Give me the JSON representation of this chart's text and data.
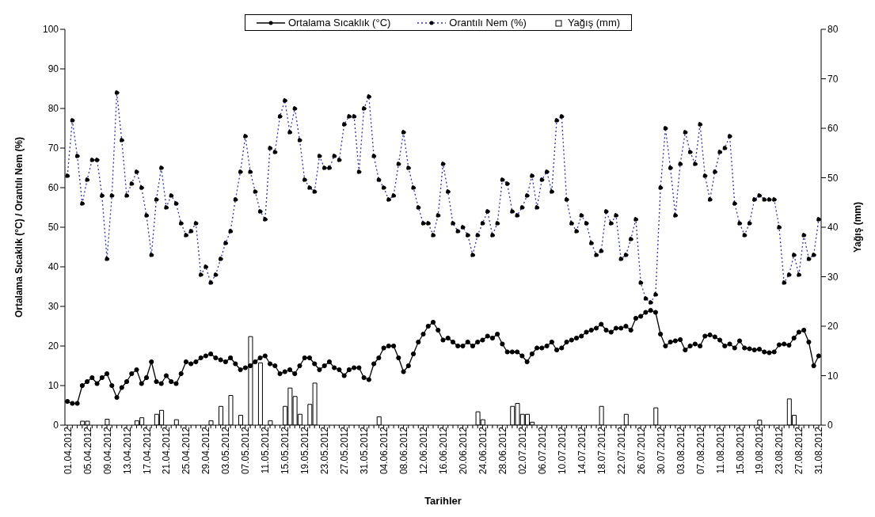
{
  "chart_data": {
    "type": "line",
    "xlabel": "Tarihler",
    "ylabel": "Ortalama Sıcaklık (°C) / Orantılı Nem (%)",
    "y2label": "Yağış (mm)",
    "categories": [
      "01.04.2012",
      null,
      null,
      null,
      "05.04.2012",
      null,
      null,
      null,
      "09.04.2012",
      null,
      null,
      null,
      "13.04.2012",
      null,
      null,
      null,
      "17.04.2012",
      null,
      null,
      null,
      "21.04.2012",
      null,
      null,
      null,
      "25.04.2012",
      null,
      null,
      null,
      "29.04.2012",
      null,
      null,
      null,
      "03.05.2012",
      null,
      null,
      null,
      "07.05.2012",
      null,
      null,
      null,
      "11.05.2012",
      null,
      null,
      null,
      "15.05.2012",
      null,
      null,
      null,
      "19.05.2012",
      null,
      null,
      null,
      "23.05.2012",
      null,
      null,
      null,
      "27.05.2012",
      null,
      null,
      null,
      "31.05.2012",
      null,
      null,
      null,
      "04.06.2012",
      null,
      null,
      null,
      "08.06.2012",
      null,
      null,
      null,
      "12.06.2012",
      null,
      null,
      null,
      "16.06.2012",
      null,
      null,
      null,
      "20.06.2012",
      null,
      null,
      null,
      "24.06.2012",
      null,
      null,
      null,
      "28.06.2012",
      null,
      null,
      null,
      "02.07.2012",
      null,
      null,
      null,
      "06.07.2012",
      null,
      null,
      null,
      "10.07.2012",
      null,
      null,
      null,
      "14.07.2012",
      null,
      null,
      null,
      "18.07.2012",
      null,
      null,
      null,
      "22.07.2012",
      null,
      null,
      null,
      "26.07.2012",
      null,
      null,
      null,
      "30.07.2012",
      null,
      null,
      null,
      "03.08.2012",
      null,
      null,
      null,
      "07.08.2012",
      null,
      null,
      null,
      "11.08.2012",
      null,
      null,
      null,
      "15.08.2012",
      null,
      null,
      null,
      "19.08.2012",
      null,
      null,
      null,
      "23.08.2012",
      null,
      null,
      null,
      "27.08.2012",
      null,
      null,
      null,
      "31.08.2012"
    ],
    "series": [
      {
        "name": "Ortalama Sıcaklık (°C)",
        "color": "#000000",
        "line_style": "solid",
        "values": [
          6,
          5.5,
          5.5,
          10,
          11,
          12,
          10.5,
          12,
          13,
          10,
          7,
          9.5,
          11,
          13,
          14,
          10.5,
          12,
          16,
          11,
          10.5,
          12.5,
          11,
          10.5,
          13,
          16,
          15.5,
          16,
          17,
          17.5,
          18,
          17,
          16.5,
          16,
          17,
          15.5,
          14,
          14.5,
          15,
          16,
          17,
          17.5,
          15.5,
          15,
          13,
          13.5,
          14,
          13,
          15,
          17,
          17,
          15.5,
          14,
          15,
          16,
          14.5,
          14,
          12.5,
          14,
          14.5,
          14.5,
          12,
          11.5,
          15.5,
          17,
          19.5,
          20,
          20,
          17,
          13.5,
          15,
          18,
          21,
          23,
          25,
          26,
          24,
          21.5,
          22,
          21,
          20,
          20,
          21,
          20,
          21,
          21.5,
          22.5,
          22,
          23,
          20.5,
          18.5,
          18.5,
          18.5,
          17.5,
          16,
          18,
          19.5,
          19.5,
          20,
          21,
          19,
          19.5,
          21,
          21.5,
          22,
          22.5,
          23.5,
          24,
          24.5,
          25.5,
          24,
          23.5,
          24.5,
          24.5,
          25,
          24,
          27,
          27.5,
          28.5,
          29,
          28.5,
          23,
          20,
          21,
          21.3,
          21.6,
          19,
          20,
          20.5,
          20,
          22.5,
          22.8,
          22.3,
          21.5,
          20,
          20.5,
          19.5,
          21.3,
          19.5,
          19.3,
          19,
          19.2,
          18.5,
          18.3,
          18.5,
          20.3,
          20.5,
          20.2,
          22,
          23.5,
          24,
          21,
          15,
          17.5
        ]
      },
      {
        "name": "Orantılı Nem (%)",
        "color": "#3333aa",
        "line_style": "dotted",
        "values": [
          63,
          77,
          68,
          56,
          62,
          67,
          67,
          58,
          42,
          58,
          84,
          72,
          58,
          61,
          64,
          60,
          53,
          43,
          57,
          65,
          55,
          58,
          56,
          51,
          48,
          49,
          51,
          38,
          40,
          36,
          38,
          42,
          46,
          49,
          57,
          64,
          73,
          64,
          59,
          54,
          52,
          70,
          69,
          78,
          82,
          74,
          80,
          72,
          62,
          60,
          59,
          68,
          65,
          65,
          68,
          67,
          76,
          78,
          78,
          64,
          80,
          83,
          68,
          62,
          60,
          57,
          58,
          66,
          74,
          65,
          60,
          55,
          51,
          51,
          48,
          53,
          66,
          59,
          51,
          49,
          50,
          48,
          43,
          48,
          51,
          54,
          48,
          51,
          62,
          61,
          54,
          53,
          55,
          58,
          63,
          55,
          62,
          64,
          59,
          77,
          78,
          57,
          51,
          49,
          53,
          51,
          46,
          43,
          44,
          54,
          51,
          53,
          42,
          43,
          47,
          52,
          36,
          32,
          31,
          33,
          60,
          75,
          65,
          53,
          66,
          74,
          69,
          66,
          76,
          63,
          57,
          64,
          69,
          70,
          73,
          56,
          51,
          48,
          51,
          57,
          58,
          57,
          57,
          57,
          50,
          36,
          38,
          43,
          38,
          48,
          42,
          43,
          52
        ]
      },
      {
        "name": "Yağış (mm)",
        "type": "bar",
        "axis": "y2",
        "color": "#ffffff",
        "values": [
          0,
          0,
          0,
          0.8,
          0.8,
          0,
          0,
          0,
          1.2,
          0,
          0,
          0,
          0,
          0,
          0.9,
          1.5,
          0,
          0,
          2.2,
          3,
          0,
          0,
          1.1,
          0,
          0,
          0,
          0,
          0,
          0,
          0.9,
          0,
          3.8,
          0,
          6,
          0,
          2,
          0,
          17.9,
          0,
          12.6,
          0,
          0.9,
          0,
          0,
          3.8,
          7.5,
          5.8,
          2.2,
          0,
          4.2,
          8.5,
          0,
          0,
          0,
          0,
          0,
          0,
          0,
          0,
          0,
          0,
          0,
          0,
          1.7,
          0,
          0,
          0,
          0,
          0,
          0,
          0,
          0,
          0,
          0,
          0,
          0,
          0,
          0,
          0,
          0,
          0,
          0,
          0,
          2.7,
          1.1,
          0,
          0,
          0,
          0,
          0,
          3.8,
          4.4,
          2.2,
          2.2,
          0.6,
          0,
          0,
          0,
          0,
          0,
          0,
          0,
          0,
          0,
          0,
          0,
          0,
          0,
          3.8,
          0,
          0,
          0,
          0,
          2.2,
          0,
          0,
          0,
          0,
          0,
          3.5,
          0,
          0,
          0,
          0,
          0,
          0,
          0,
          0,
          0,
          0,
          0,
          0,
          0,
          0,
          0,
          0,
          0,
          0,
          0,
          0,
          1,
          0,
          0,
          0,
          0,
          0,
          5.3,
          2,
          0,
          0,
          0,
          0,
          0
        ]
      }
    ],
    "marker": "circle",
    "ylim": [
      0,
      100
    ],
    "yticks": [
      0,
      10,
      20,
      30,
      40,
      50,
      60,
      70,
      80,
      90,
      100
    ],
    "y2lim": [
      0,
      80
    ],
    "y2ticks": [
      0,
      10,
      20,
      30,
      40,
      50,
      60,
      70,
      80
    ],
    "grid": false,
    "legend": "top"
  }
}
